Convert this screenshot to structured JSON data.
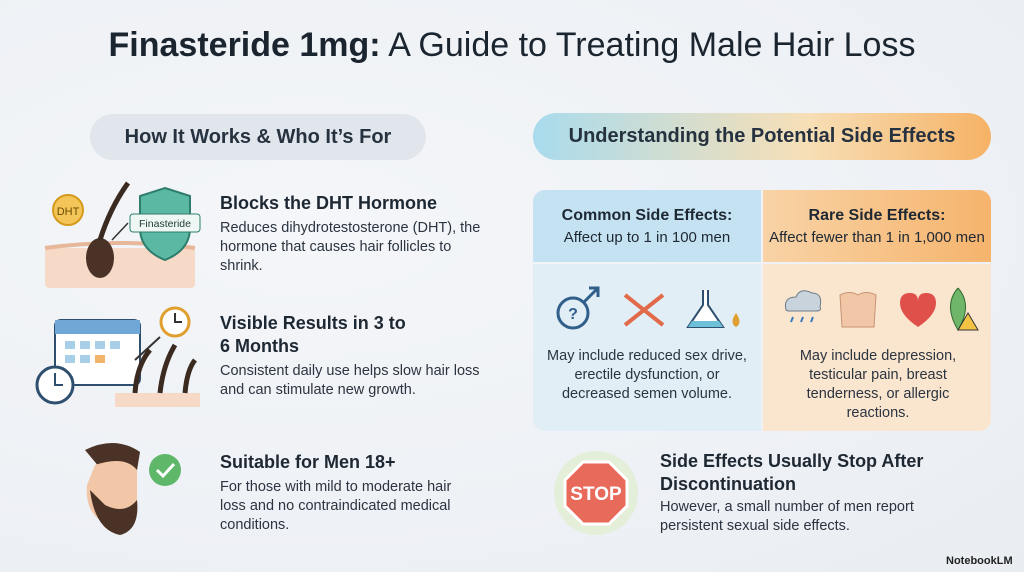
{
  "header": {
    "title_bold": "Finasteride 1mg:",
    "title_rest": "A Guide to Treating Male Hair Loss"
  },
  "left": {
    "heading": "How It Works & Who It’s For",
    "items": [
      {
        "title": "Blocks the DHT Hormone",
        "body": "Reduces dihydrotestosterone (DHT), the hormone that causes hair follicles to shrink."
      },
      {
        "title": "Visible Results in 3 to 6 Months",
        "body": "Consistent daily use helps slow hair loss and can stimulate new growth."
      },
      {
        "title": "Suitable for Men 18+",
        "body": "For those with mild to moderate hair loss and no contraindicated medical conditions."
      }
    ]
  },
  "right": {
    "heading": "Understanding the Potential Side Effects",
    "common": {
      "title": "Common Side Effects:",
      "subtitle": "Affect up to 1 in 100 men",
      "body": "May include reduced sex drive, erectile dysfunction, or decreased semen volume."
    },
    "rare": {
      "title": "Rare Side Effects:",
      "subtitle": "Affect fewer than 1 in 1,000 men",
      "body": "May include depression, testicular pain, breast tenderness, or allergic reactions."
    },
    "stop": {
      "title": "Side Effects Usually Stop After Discontinuation",
      "body": "However, a small number of men report persistent sexual side effects."
    }
  },
  "icon_labels": {
    "dht": "DHT",
    "shield": "Finasteride",
    "stop_sign": "STOP",
    "question": "?"
  },
  "footer": {
    "brand": "NotebookLM"
  }
}
